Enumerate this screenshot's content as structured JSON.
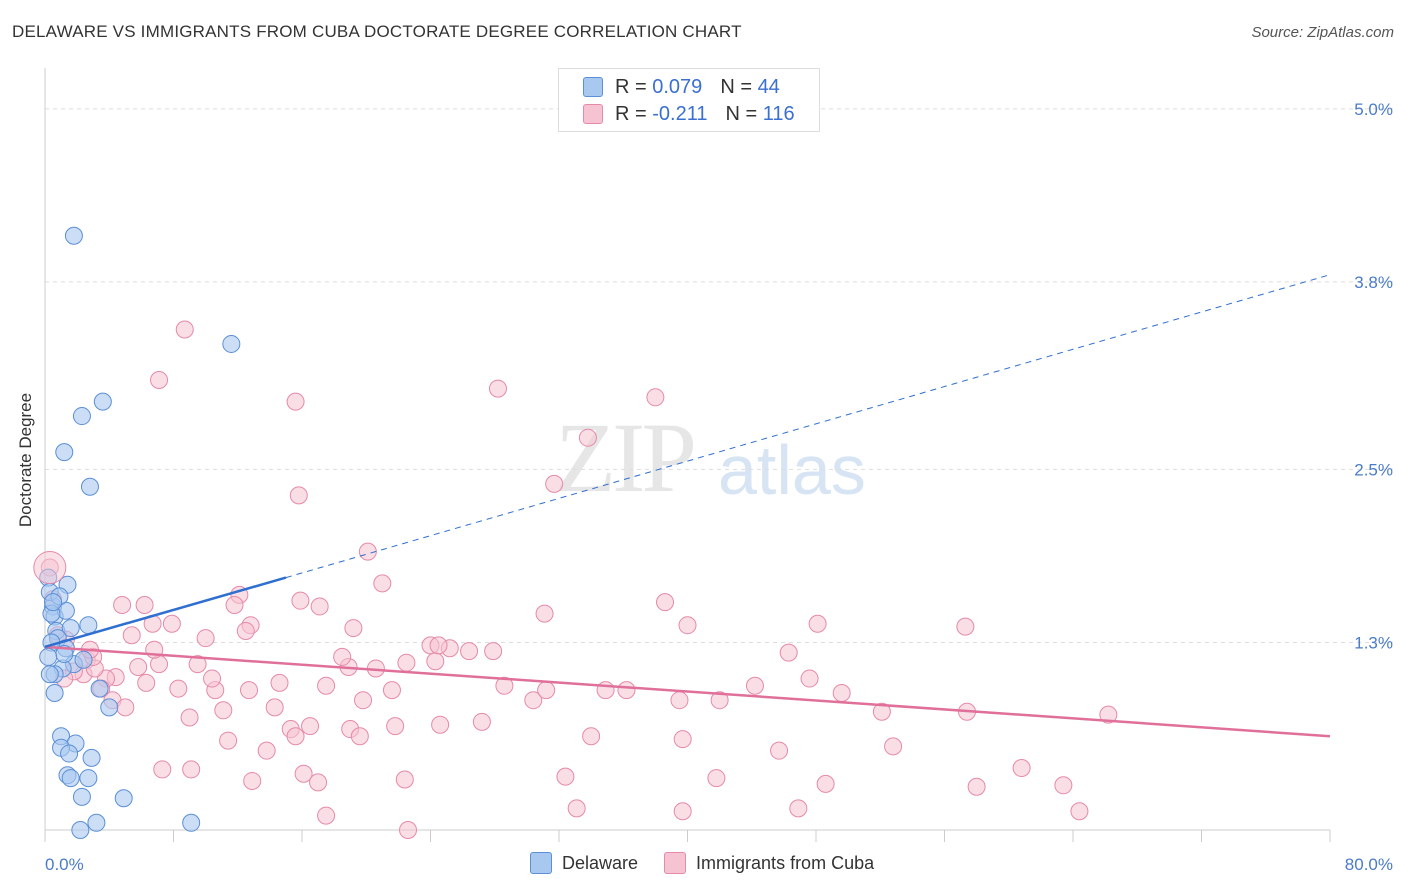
{
  "title": "DELAWARE VS IMMIGRANTS FROM CUBA DOCTORATE DEGREE CORRELATION CHART",
  "source": "Source: ZipAtlas.com",
  "watermark": {
    "zip": "ZIP",
    "atlas": "atlas"
  },
  "legend": {
    "rows": [
      {
        "r_label": "R =",
        "r_value": "0.079",
        "n_label": "N =",
        "n_value": "44"
      },
      {
        "r_label": "R =",
        "r_value": "-0.211",
        "n_label": "N =",
        "n_value": "116"
      }
    ]
  },
  "bottom_legend": {
    "series1": "Delaware",
    "series2": "Immigrants from Cuba"
  },
  "colors": {
    "delaware_fill": "#a9c8f0",
    "delaware_stroke": "#5b8fd6",
    "delaware_line": "#2f6fcf",
    "cuba_fill": "#f5c3d2",
    "cuba_stroke": "#e68aa8",
    "cuba_line": "#e0709a",
    "grid": "#dddddd",
    "axis": "#cccccc",
    "tick_text": "#4a7cc7"
  },
  "chart_data": {
    "type": "scatter",
    "title": "DELAWARE VS IMMIGRANTS FROM CUBA DOCTORATE DEGREE CORRELATION CHART",
    "xlabel": "",
    "ylabel": "Doctorate Degree",
    "xlim": [
      0,
      80
    ],
    "ylim": [
      0,
      5.2
    ],
    "x_tick_labels": [
      "0.0%",
      "80.0%"
    ],
    "y_ticks": [
      1.3,
      2.5,
      3.8,
      5.0
    ],
    "y_tick_labels": [
      "1.3%",
      "2.5%",
      "3.8%",
      "5.0%"
    ],
    "grid": true,
    "legend_position": "top-center",
    "series": [
      {
        "name": "Delaware",
        "r": 0.079,
        "n": 44,
        "trend": {
          "x0": 0,
          "y0": 1.27,
          "x1": 15,
          "y1": 1.75,
          "extend_to_x": 80,
          "extend_to_y": 3.85
        },
        "points": [
          [
            1.8,
            4.12
          ],
          [
            11.6,
            3.37
          ],
          [
            3.6,
            2.97
          ],
          [
            2.3,
            2.87
          ],
          [
            1.2,
            2.62
          ],
          [
            2.8,
            2.38
          ],
          [
            0.2,
            1.75
          ],
          [
            1.4,
            1.7
          ],
          [
            0.5,
            1.55
          ],
          [
            0.6,
            1.48
          ],
          [
            1.3,
            1.52
          ],
          [
            0.4,
            1.5
          ],
          [
            0.7,
            1.38
          ],
          [
            2.7,
            1.42
          ],
          [
            1.6,
            1.4
          ],
          [
            0.8,
            1.33
          ],
          [
            1.3,
            1.26
          ],
          [
            1.8,
            1.15
          ],
          [
            2.4,
            1.18
          ],
          [
            1.1,
            1.12
          ],
          [
            0.6,
            1.08
          ],
          [
            0.3,
            1.08
          ],
          [
            3.4,
            0.98
          ],
          [
            0.6,
            0.95
          ],
          [
            4.0,
            0.85
          ],
          [
            1.0,
            0.65
          ],
          [
            1.9,
            0.6
          ],
          [
            1.0,
            0.57
          ],
          [
            2.9,
            0.5
          ],
          [
            1.5,
            0.53
          ],
          [
            1.4,
            0.38
          ],
          [
            1.6,
            0.36
          ],
          [
            2.7,
            0.36
          ],
          [
            4.9,
            0.22
          ],
          [
            2.3,
            0.23
          ],
          [
            3.2,
            0.05
          ],
          [
            9.1,
            0.05
          ],
          [
            2.2,
            0.0
          ],
          [
            0.3,
            1.65
          ],
          [
            0.9,
            1.62
          ],
          [
            1.2,
            1.22
          ],
          [
            0.5,
            1.58
          ],
          [
            0.4,
            1.3
          ],
          [
            0.2,
            1.2
          ]
        ]
      },
      {
        "name": "Immigrants from Cuba",
        "r": -0.211,
        "n": 116,
        "trend": {
          "x0": 0,
          "y0": 1.27,
          "x1": 80,
          "y1": 0.65
        },
        "points": [
          [
            0.3,
            1.82
          ],
          [
            8.7,
            3.47
          ],
          [
            7.1,
            3.12
          ],
          [
            15.6,
            2.97
          ],
          [
            28.2,
            3.06
          ],
          [
            38.0,
            3.0
          ],
          [
            33.8,
            2.72
          ],
          [
            15.8,
            2.32
          ],
          [
            31.7,
            2.4
          ],
          [
            20.1,
            1.93
          ],
          [
            21.0,
            1.71
          ],
          [
            12.1,
            1.63
          ],
          [
            11.8,
            1.56
          ],
          [
            15.9,
            1.59
          ],
          [
            17.1,
            1.55
          ],
          [
            6.2,
            1.56
          ],
          [
            4.8,
            1.56
          ],
          [
            12.8,
            1.42
          ],
          [
            10.0,
            1.33
          ],
          [
            6.7,
            1.43
          ],
          [
            7.9,
            1.43
          ],
          [
            19.2,
            1.4
          ],
          [
            31.1,
            1.5
          ],
          [
            38.6,
            1.58
          ],
          [
            40.0,
            1.42
          ],
          [
            48.1,
            1.43
          ],
          [
            57.3,
            1.41
          ],
          [
            46.3,
            1.23
          ],
          [
            24.0,
            1.28
          ],
          [
            25.2,
            1.26
          ],
          [
            26.4,
            1.24
          ],
          [
            24.3,
            1.17
          ],
          [
            22.5,
            1.16
          ],
          [
            20.6,
            1.12
          ],
          [
            27.9,
            1.24
          ],
          [
            18.9,
            1.13
          ],
          [
            5.8,
            1.13
          ],
          [
            6.3,
            1.02
          ],
          [
            7.1,
            1.15
          ],
          [
            9.5,
            1.15
          ],
          [
            4.4,
            1.06
          ],
          [
            3.8,
            1.05
          ],
          [
            2.4,
            1.08
          ],
          [
            1.8,
            1.1
          ],
          [
            1.2,
            1.05
          ],
          [
            2.6,
            1.18
          ],
          [
            3.1,
            1.12
          ],
          [
            3.5,
            0.98
          ],
          [
            4.2,
            0.9
          ],
          [
            5.0,
            0.85
          ],
          [
            8.3,
            0.98
          ],
          [
            10.6,
            0.97
          ],
          [
            12.7,
            0.97
          ],
          [
            14.3,
            0.85
          ],
          [
            17.5,
            1.0
          ],
          [
            19.8,
            0.9
          ],
          [
            21.6,
            0.97
          ],
          [
            28.6,
            1.0
          ],
          [
            30.4,
            0.9
          ],
          [
            31.2,
            0.97
          ],
          [
            34.9,
            0.97
          ],
          [
            36.2,
            0.97
          ],
          [
            39.5,
            0.9
          ],
          [
            42.0,
            0.9
          ],
          [
            44.2,
            1.0
          ],
          [
            47.6,
            1.05
          ],
          [
            49.6,
            0.95
          ],
          [
            52.1,
            0.82
          ],
          [
            57.4,
            0.82
          ],
          [
            11.1,
            0.83
          ],
          [
            15.3,
            0.7
          ],
          [
            15.6,
            0.65
          ],
          [
            9.0,
            0.78
          ],
          [
            11.4,
            0.62
          ],
          [
            13.8,
            0.55
          ],
          [
            16.5,
            0.72
          ],
          [
            19.0,
            0.7
          ],
          [
            19.6,
            0.65
          ],
          [
            21.8,
            0.72
          ],
          [
            24.6,
            0.73
          ],
          [
            27.2,
            0.75
          ],
          [
            34.0,
            0.65
          ],
          [
            39.7,
            0.63
          ],
          [
            45.7,
            0.55
          ],
          [
            52.8,
            0.58
          ],
          [
            66.2,
            0.8
          ],
          [
            7.3,
            0.42
          ],
          [
            9.1,
            0.42
          ],
          [
            12.9,
            0.34
          ],
          [
            16.1,
            0.39
          ],
          [
            17.0,
            0.33
          ],
          [
            22.4,
            0.35
          ],
          [
            32.4,
            0.37
          ],
          [
            41.8,
            0.36
          ],
          [
            48.6,
            0.32
          ],
          [
            58.0,
            0.3
          ],
          [
            60.8,
            0.43
          ],
          [
            63.4,
            0.31
          ],
          [
            17.5,
            0.1
          ],
          [
            22.6,
            0.0
          ],
          [
            33.1,
            0.15
          ],
          [
            39.7,
            0.13
          ],
          [
            46.9,
            0.15
          ],
          [
            64.4,
            0.13
          ],
          [
            10.4,
            1.05
          ],
          [
            14.6,
            1.02
          ],
          [
            3.0,
            1.2
          ],
          [
            1.3,
            1.32
          ],
          [
            2.8,
            1.25
          ],
          [
            0.8,
            1.35
          ],
          [
            5.4,
            1.35
          ],
          [
            6.8,
            1.25
          ],
          [
            0.5,
            1.6
          ],
          [
            24.5,
            1.28
          ],
          [
            12.5,
            1.38
          ],
          [
            18.5,
            1.2
          ]
        ]
      }
    ]
  }
}
